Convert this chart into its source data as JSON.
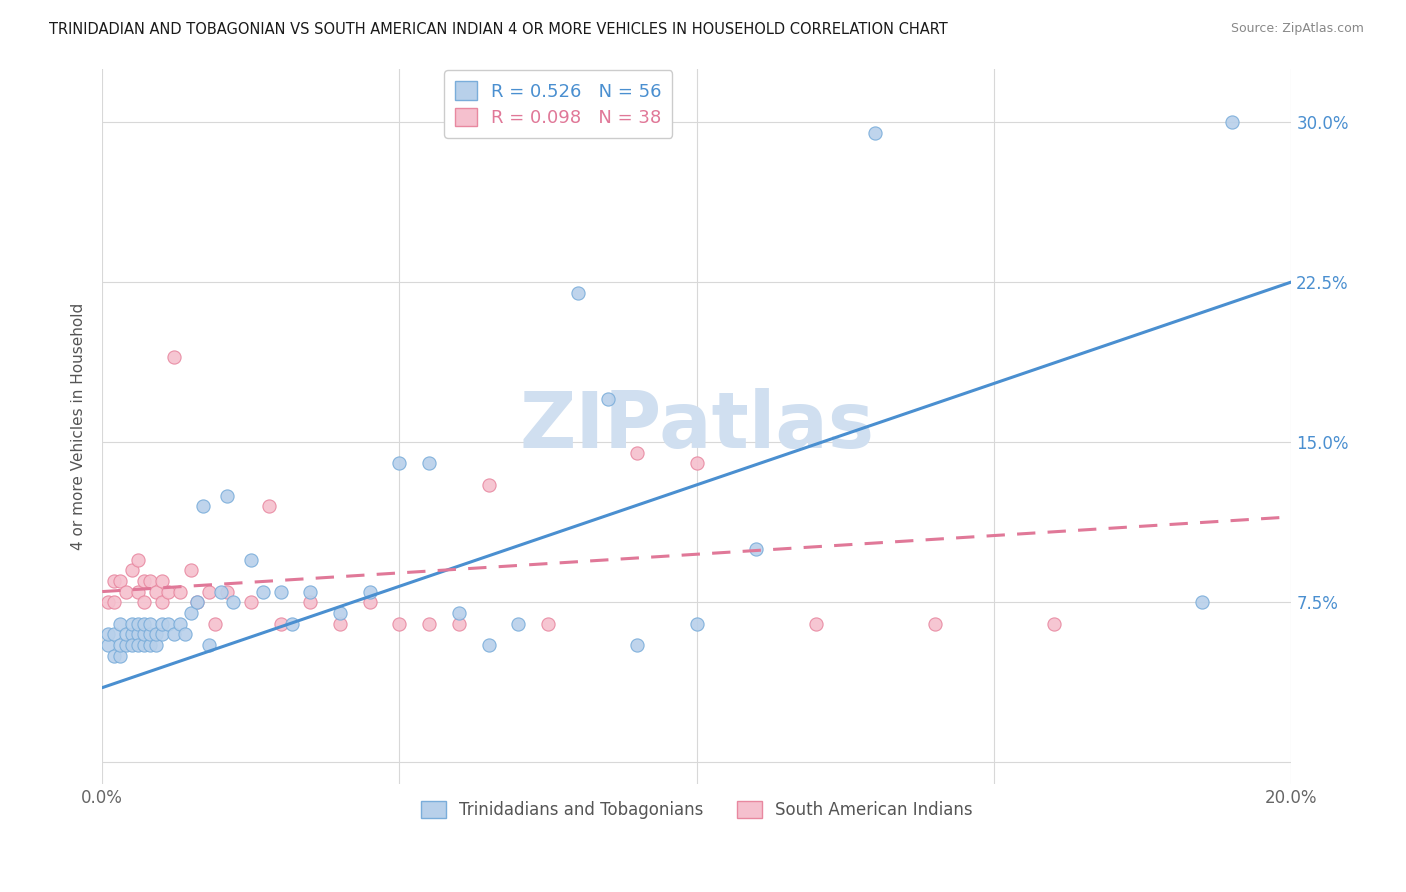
{
  "title": "TRINIDADIAN AND TOBAGONIAN VS SOUTH AMERICAN INDIAN 4 OR MORE VEHICLES IN HOUSEHOLD CORRELATION CHART",
  "source": "Source: ZipAtlas.com",
  "ylabel": "4 or more Vehicles in Household",
  "xlim": [
    0.0,
    0.2
  ],
  "ylim": [
    -0.01,
    0.325
  ],
  "xticks": [
    0.0,
    0.05,
    0.1,
    0.15,
    0.2
  ],
  "xtick_labels": [
    "0.0%",
    "",
    "",
    "",
    "20.0%"
  ],
  "yticks": [
    0.0,
    0.075,
    0.15,
    0.225,
    0.3
  ],
  "ytick_labels_right": [
    "",
    "7.5%",
    "15.0%",
    "22.5%",
    "30.0%"
  ],
  "blue_R": 0.526,
  "blue_N": 56,
  "pink_R": 0.098,
  "pink_N": 38,
  "blue_label": "Trinidadians and Tobagonians",
  "pink_label": "South American Indians",
  "background_color": "#ffffff",
  "grid_color": "#d8d8d8",
  "blue_color": "#b8d0ea",
  "blue_edge": "#7aadda",
  "pink_color": "#f5c0ce",
  "pink_edge": "#e888a0",
  "blue_line_color": "#4a8fd0",
  "pink_line_color": "#e07898",
  "watermark_color": "#d0dff0",
  "blue_x": [
    0.001,
    0.001,
    0.002,
    0.002,
    0.003,
    0.003,
    0.003,
    0.004,
    0.004,
    0.005,
    0.005,
    0.005,
    0.006,
    0.006,
    0.006,
    0.007,
    0.007,
    0.007,
    0.008,
    0.008,
    0.008,
    0.009,
    0.009,
    0.01,
    0.01,
    0.011,
    0.012,
    0.013,
    0.014,
    0.015,
    0.016,
    0.017,
    0.018,
    0.02,
    0.021,
    0.022,
    0.025,
    0.027,
    0.03,
    0.032,
    0.035,
    0.04,
    0.045,
    0.05,
    0.055,
    0.06,
    0.065,
    0.07,
    0.08,
    0.085,
    0.09,
    0.1,
    0.11,
    0.13,
    0.185,
    0.19
  ],
  "blue_y": [
    0.055,
    0.06,
    0.05,
    0.06,
    0.05,
    0.055,
    0.065,
    0.055,
    0.06,
    0.06,
    0.055,
    0.065,
    0.06,
    0.055,
    0.065,
    0.055,
    0.06,
    0.065,
    0.055,
    0.06,
    0.065,
    0.055,
    0.06,
    0.06,
    0.065,
    0.065,
    0.06,
    0.065,
    0.06,
    0.07,
    0.075,
    0.12,
    0.055,
    0.08,
    0.125,
    0.075,
    0.095,
    0.08,
    0.08,
    0.065,
    0.08,
    0.07,
    0.08,
    0.14,
    0.14,
    0.07,
    0.055,
    0.065,
    0.22,
    0.17,
    0.055,
    0.065,
    0.1,
    0.295,
    0.075,
    0.3
  ],
  "pink_x": [
    0.001,
    0.002,
    0.002,
    0.003,
    0.004,
    0.005,
    0.006,
    0.006,
    0.007,
    0.007,
    0.008,
    0.009,
    0.01,
    0.01,
    0.011,
    0.012,
    0.013,
    0.015,
    0.016,
    0.018,
    0.019,
    0.021,
    0.025,
    0.028,
    0.03,
    0.035,
    0.04,
    0.045,
    0.05,
    0.055,
    0.06,
    0.065,
    0.075,
    0.09,
    0.1,
    0.12,
    0.14,
    0.16
  ],
  "pink_y": [
    0.075,
    0.075,
    0.085,
    0.085,
    0.08,
    0.09,
    0.08,
    0.095,
    0.075,
    0.085,
    0.085,
    0.08,
    0.075,
    0.085,
    0.08,
    0.19,
    0.08,
    0.09,
    0.075,
    0.08,
    0.065,
    0.08,
    0.075,
    0.12,
    0.065,
    0.075,
    0.065,
    0.075,
    0.065,
    0.065,
    0.065,
    0.13,
    0.065,
    0.145,
    0.14,
    0.065,
    0.065,
    0.065
  ],
  "blue_trend_x": [
    0.0,
    0.2
  ],
  "blue_trend_y": [
    0.035,
    0.225
  ],
  "pink_trend_x": [
    0.0,
    0.2
  ],
  "pink_trend_y": [
    0.08,
    0.115
  ]
}
